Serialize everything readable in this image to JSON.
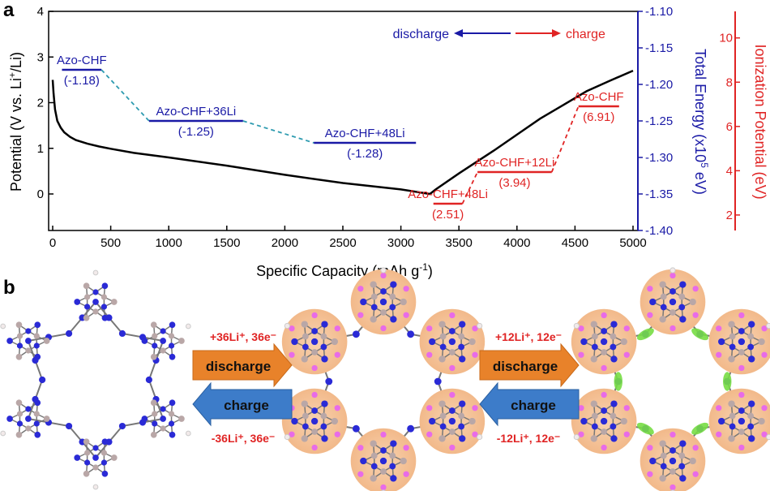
{
  "panels": {
    "a": "a",
    "b": "b"
  },
  "chart_data": {
    "type": "line",
    "x_axis": {
      "label_main": "Specific Capacity (mAh g",
      "label_sup": "-1",
      "label_end": ")",
      "range": [
        0,
        5000
      ],
      "ticks": [
        0,
        500,
        1000,
        1500,
        2000,
        2500,
        3000,
        3500,
        4000,
        4500,
        5000
      ]
    },
    "y_left": {
      "label_main": "Potential (V vs. Li",
      "label_sup": "+",
      "label_end": "/Li)",
      "range": [
        -0.8,
        4
      ],
      "ticks": [
        0,
        1,
        2,
        3,
        4
      ]
    },
    "y_right1": {
      "label_main": "Total Energy (x10",
      "label_sup": "5",
      "label_end": " eV)",
      "range": [
        -1.4,
        -1.1
      ],
      "ticks": [
        "-1.10",
        "-1.15",
        "-1.20",
        "-1.25",
        "-1.30",
        "-1.35",
        "-1.40"
      ],
      "color": "#1a1aa6"
    },
    "y_right2": {
      "label": "Ionization Potential (eV)",
      "range": [
        1.3,
        11.2
      ],
      "ticks": [
        2,
        4,
        6,
        8,
        10
      ],
      "color": "#e02424"
    },
    "series": [
      {
        "type": "line",
        "color": "#000000",
        "x": [
          0,
          8,
          20,
          40,
          70,
          100,
          150,
          200,
          300,
          400,
          500,
          700,
          1000,
          1500,
          2000,
          2500,
          3000,
          3250,
          3300,
          3500,
          3800,
          4000,
          4200,
          4400,
          4600,
          4800,
          5000
        ],
        "y": [
          2.5,
          2.2,
          1.85,
          1.6,
          1.45,
          1.35,
          1.25,
          1.18,
          1.1,
          1.04,
          0.99,
          0.9,
          0.8,
          0.62,
          0.42,
          0.24,
          0.1,
          0.0,
          0.1,
          0.45,
          0.95,
          1.3,
          1.65,
          1.95,
          2.25,
          2.48,
          2.7
        ]
      }
    ],
    "discharge_levels": {
      "color": "#1a1aa6",
      "items": [
        {
          "name": "Azo-CHF",
          "value_label": "(-1.18)",
          "x_start": 80,
          "x_end": 420,
          "energy": -1.18
        },
        {
          "name": "Azo-CHF+36Li",
          "value_label": "(-1.25)",
          "x_start": 830,
          "x_end": 1640,
          "energy": -1.25
        },
        {
          "name": "Azo-CHF+48Li",
          "value_label": "(-1.28)",
          "x_start": 2250,
          "x_end": 3130,
          "energy": -1.28
        }
      ]
    },
    "charge_levels": {
      "color": "#e02424",
      "items": [
        {
          "name": "Azo-CHF+48Li",
          "value_label": "(2.51)",
          "x_start": 3280,
          "x_end": 3530,
          "ip": 2.51
        },
        {
          "name": "Azo-CHF+12Li",
          "value_label": "(3.94)",
          "x_start": 3660,
          "x_end": 4300,
          "ip": 3.94
        },
        {
          "name": "Azo-CHF",
          "value_label": "(6.91)",
          "x_start": 4530,
          "x_end": 4880,
          "ip": 6.91
        }
      ]
    },
    "direction_legend": {
      "discharge": "discharge",
      "charge": "charge"
    }
  },
  "scheme": {
    "step1": {
      "top": "+36Li⁺, 36e⁻",
      "arrow_forward": "discharge",
      "arrow_back": "charge",
      "bottom": "-36Li⁺, 36e⁻"
    },
    "step2": {
      "top": "+12Li⁺, 12e⁻",
      "arrow_forward": "discharge",
      "arrow_back": "charge",
      "bottom": "-12Li⁺, 12e⁻"
    },
    "colors": {
      "nitrogen": "#2a2ad6",
      "carbon": "#b9a7a7",
      "lithium": "#e86be8",
      "halo": "#f6c6a0",
      "fluor": "#77dd44"
    }
  }
}
